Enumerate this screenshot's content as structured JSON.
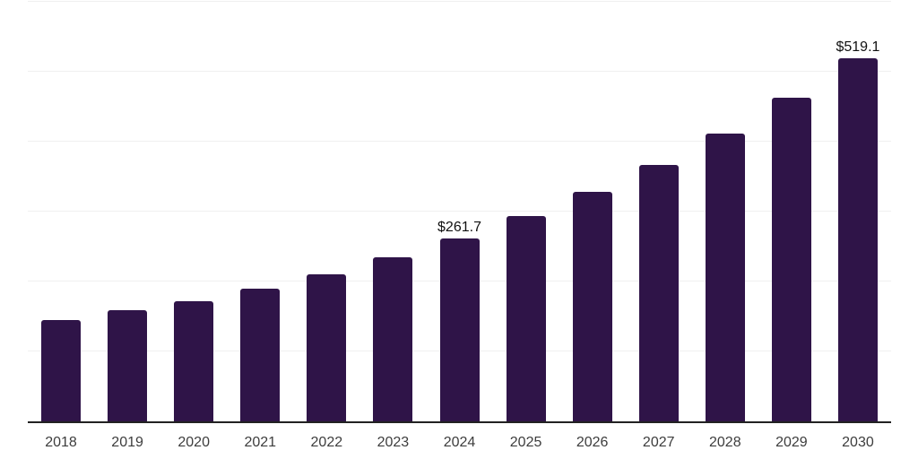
{
  "chart_data": {
    "type": "bar",
    "title": "",
    "xlabel": "",
    "ylabel": "",
    "categories": [
      "2018",
      "2019",
      "2020",
      "2021",
      "2022",
      "2023",
      "2024",
      "2025",
      "2026",
      "2027",
      "2028",
      "2029",
      "2030"
    ],
    "values": [
      145.0,
      159.0,
      172.4,
      189.2,
      210.9,
      235.1,
      261.7,
      293.4,
      327.8,
      367.3,
      411.4,
      463.0,
      519.1
    ],
    "value_labels": [
      {
        "category": "2024",
        "text": "$261.7"
      },
      {
        "category": "2030",
        "text": "$519.1"
      }
    ],
    "ylim": [
      0,
      600
    ],
    "gridline_step": 100,
    "grid": "horizontal-only",
    "legend": "none",
    "y_axis_labels_visible": false,
    "colors": {
      "bar": "#2f1448",
      "gridline": "#f0f0f0",
      "axis_line": "#222222",
      "tick_label": "#3d3d3d",
      "value_label": "#111111",
      "background": "#ffffff"
    }
  }
}
